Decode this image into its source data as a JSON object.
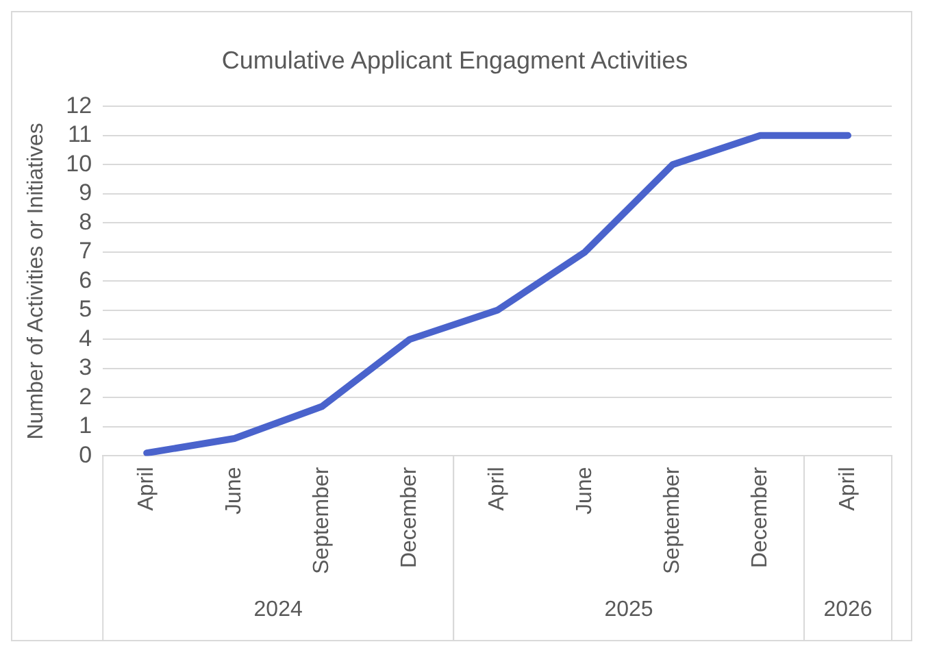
{
  "chart_data": {
    "type": "line",
    "title": "Cumulative Applicant Engagment Activities",
    "ylabel": "Number of Activities or Initiatives",
    "categories": [
      "April",
      "June",
      "September",
      "December",
      "April",
      "June",
      "September",
      "December",
      "April"
    ],
    "series": [
      {
        "color": "#4a63cc",
        "values": [
          0.1,
          0.6,
          1.7,
          4,
          5,
          7,
          10,
          11,
          11
        ]
      }
    ],
    "ylim": [
      0,
      12
    ],
    "yticks": [
      0,
      1,
      2,
      3,
      4,
      5,
      6,
      7,
      8,
      9,
      10,
      11,
      12
    ],
    "grid": "y",
    "legend": false,
    "marker": "none",
    "line_style": "solid",
    "annotations": [
      "2024",
      "2025",
      "2026"
    ]
  }
}
